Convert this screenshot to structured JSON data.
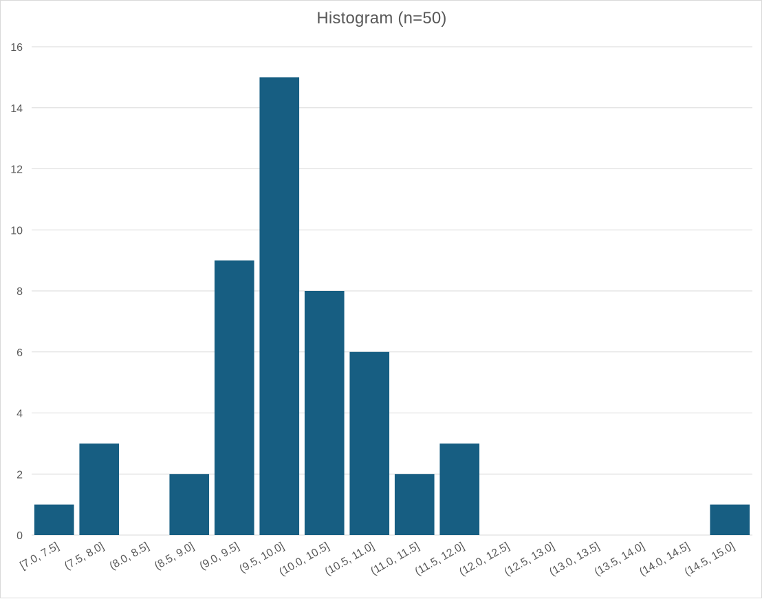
{
  "chart_data": {
    "type": "bar",
    "title": "Histogram (n=50)",
    "xlabel": "",
    "ylabel": "",
    "categories": [
      "[7.0, 7.5]",
      "(7.5, 8.0]",
      "(8.0, 8.5]",
      "(8.5, 9.0]",
      "(9.0, 9.5]",
      "(9.5, 10.0]",
      "(10.0, 10.5]",
      "(10.5, 11.0]",
      "(11.0, 11.5]",
      "(11.5, 12.0]",
      "(12.0, 12.5]",
      "(12.5, 13.0]",
      "(13.0, 13.5]",
      "(13.5, 14.0]",
      "(14.0, 14.5]",
      "(14.5, 15.0]"
    ],
    "values": [
      1,
      3,
      0,
      2,
      9,
      15,
      8,
      6,
      2,
      3,
      0,
      0,
      0,
      0,
      0,
      1
    ],
    "ylim": [
      0,
      16
    ],
    "yticks": [
      0,
      2,
      4,
      6,
      8,
      10,
      12,
      14,
      16
    ],
    "grid": true,
    "legend": "none",
    "bar_color": "#175e82"
  }
}
